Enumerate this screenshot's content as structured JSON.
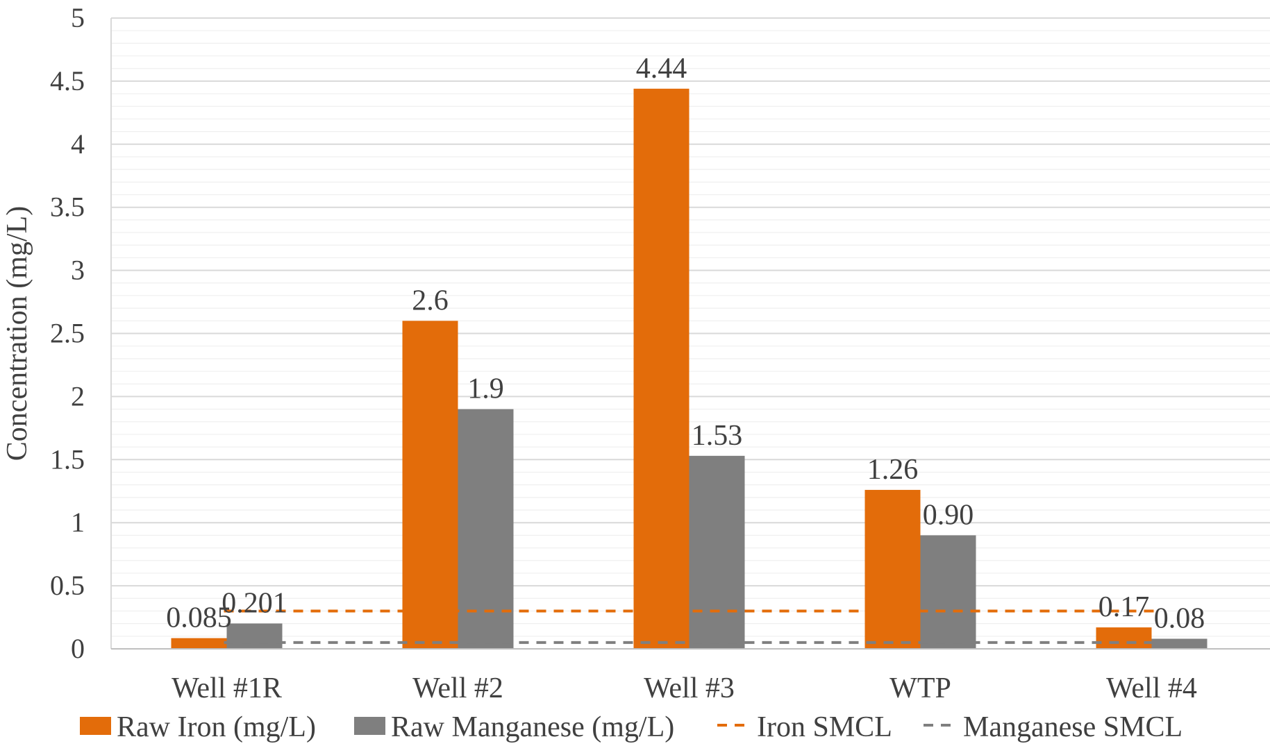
{
  "chart_data": {
    "type": "bar",
    "title": "",
    "xlabel": "",
    "ylabel": "Concentration (mg/L)",
    "ylim": [
      0,
      5
    ],
    "yticks": [
      0,
      0.5,
      1,
      1.5,
      2,
      2.5,
      3,
      3.5,
      4,
      4.5,
      5
    ],
    "ytick_labels": [
      "0",
      "0.5",
      "1",
      "1.5",
      "2",
      "2.5",
      "3",
      "3.5",
      "4",
      "4.5",
      "5"
    ],
    "grid": true,
    "legend_position": "bottom",
    "categories": [
      "Well #1R",
      "Well #2",
      "Well #3",
      "WTP",
      "Well #4"
    ],
    "series": [
      {
        "name": "Raw Iron (mg/L)",
        "kind": "bar",
        "color": "#E36C0A",
        "values": [
          0.085,
          2.6,
          4.44,
          1.26,
          0.17
        ],
        "labels": [
          "0.085",
          "2.6",
          "4.44",
          "1.26",
          "0.17"
        ]
      },
      {
        "name": "Raw Manganese (mg/L)",
        "kind": "bar",
        "color": "#7F7F7F",
        "values": [
          0.201,
          1.9,
          1.53,
          0.9,
          0.08
        ],
        "labels": [
          "0.201",
          "1.9",
          "1.53",
          "0.90",
          "0.08"
        ]
      },
      {
        "name": "Iron SMCL",
        "kind": "dashed-line",
        "color": "#E36C0A",
        "value": 0.3
      },
      {
        "name": "Manganese SMCL",
        "kind": "dashed-line",
        "color": "#7F7F7F",
        "value": 0.05
      }
    ]
  }
}
